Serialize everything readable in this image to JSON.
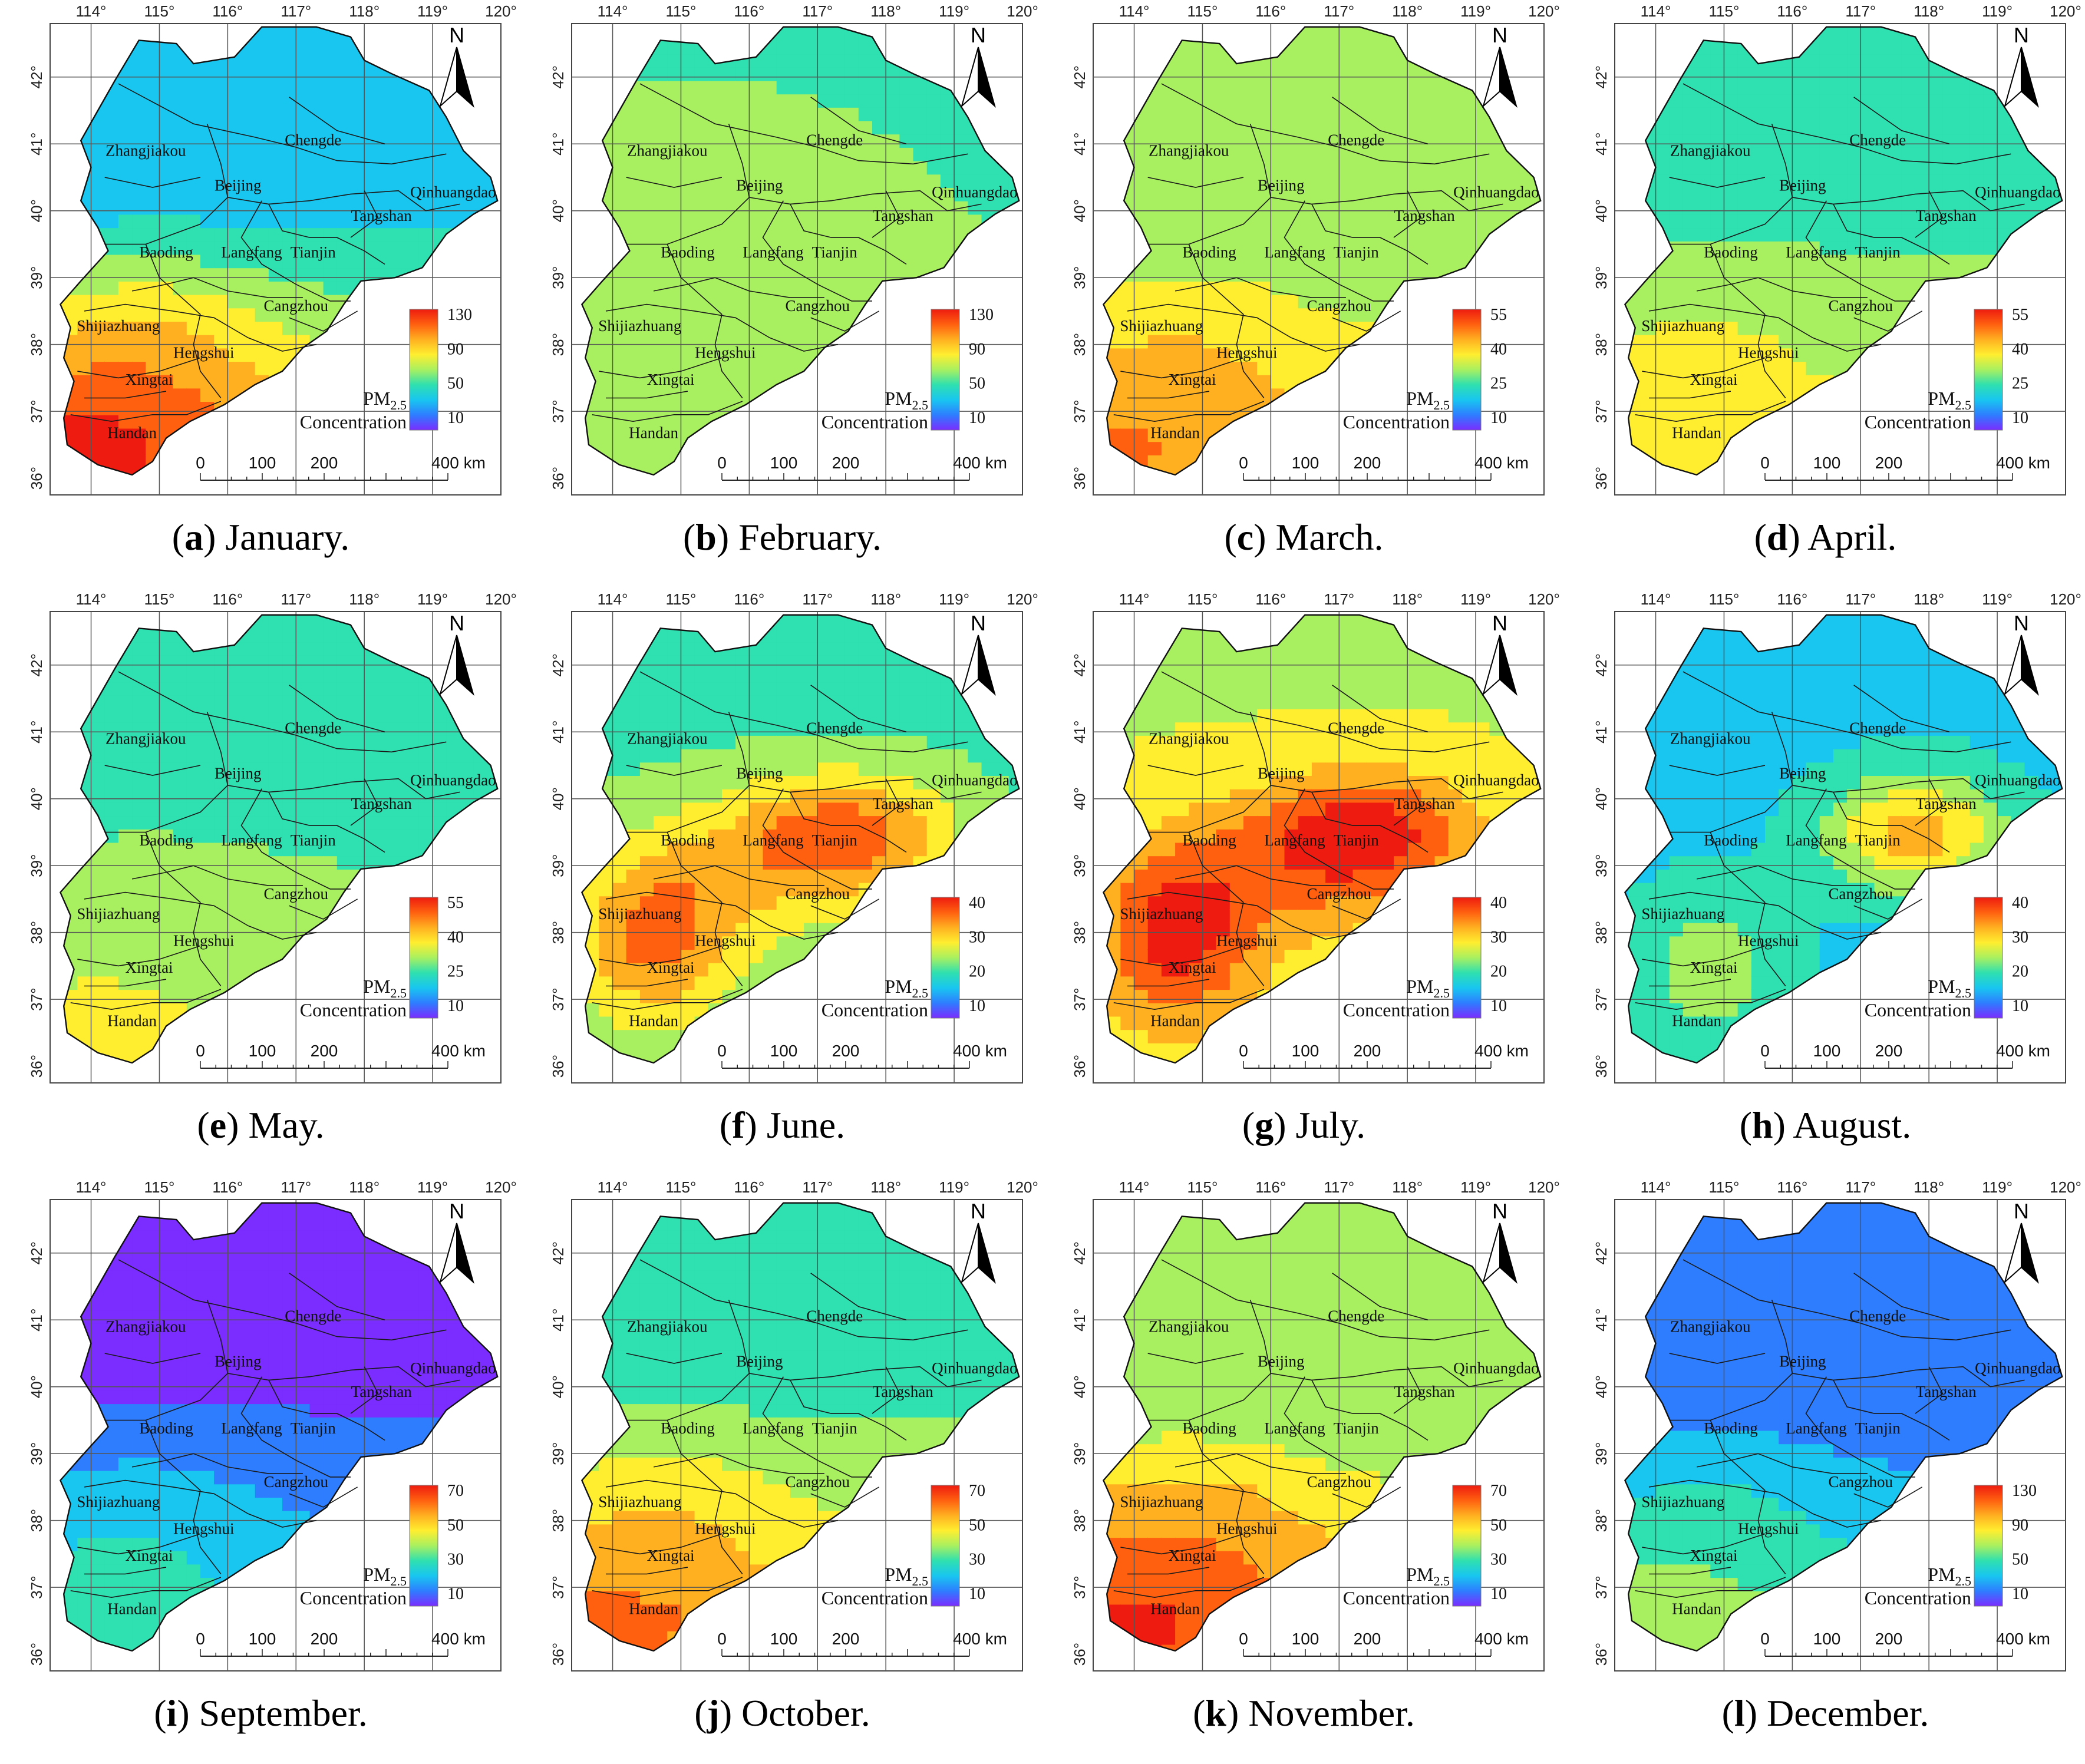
{
  "panels": [
    {
      "letter": "a",
      "month": "January.",
      "ticks": [
        "130",
        "90",
        "50",
        "10"
      ],
      "pattern": "south_hot",
      "hot": 1.0,
      "cool": 0.32
    },
    {
      "letter": "b",
      "month": "February.",
      "ticks": [
        "130",
        "90",
        "50",
        "10"
      ],
      "pattern": "uniform",
      "hot": 0.58,
      "cool": 0.42
    },
    {
      "letter": "c",
      "month": "March.",
      "ticks": [
        "55",
        "40",
        "25",
        "10"
      ],
      "pattern": "south_hot",
      "hot": 0.82,
      "cool": 0.45
    },
    {
      "letter": "d",
      "month": "April.",
      "ticks": [
        "55",
        "40",
        "25",
        "10"
      ],
      "pattern": "south_hot",
      "hot": 0.68,
      "cool": 0.42
    },
    {
      "letter": "e",
      "month": "May.",
      "ticks": [
        "55",
        "40",
        "25",
        "10"
      ],
      "pattern": "south_hot",
      "hot": 0.6,
      "cool": 0.42
    },
    {
      "letter": "f",
      "month": "June.",
      "ticks": [
        "40",
        "30",
        "20",
        "10"
      ],
      "pattern": "center_hot",
      "hot": 0.88,
      "cool": 0.42
    },
    {
      "letter": "g",
      "month": "July.",
      "ticks": [
        "40",
        "30",
        "20",
        "10"
      ],
      "pattern": "center_hot",
      "hot": 1.0,
      "cool": 0.55
    },
    {
      "letter": "h",
      "month": "August.",
      "ticks": [
        "40",
        "30",
        "20",
        "10"
      ],
      "pattern": "east_hot",
      "hot": 0.8,
      "cool": 0.3
    },
    {
      "letter": "i",
      "month": "September.",
      "ticks": [
        "70",
        "50",
        "30",
        "10"
      ],
      "pattern": "south_hot",
      "hot": 0.45,
      "cool": 0.1
    },
    {
      "letter": "j",
      "month": "October.",
      "ticks": [
        "70",
        "50",
        "30",
        "10"
      ],
      "pattern": "south_hot",
      "hot": 0.85,
      "cool": 0.42
    },
    {
      "letter": "k",
      "month": "November.",
      "ticks": [
        "70",
        "50",
        "30",
        "10"
      ],
      "pattern": "south_hot",
      "hot": 0.96,
      "cool": 0.45
    },
    {
      "letter": "l",
      "month": "December.",
      "ticks": [
        "130",
        "90",
        "50",
        "10"
      ],
      "pattern": "south_hot",
      "hot": 0.55,
      "cool": 0.15
    }
  ],
  "lon_labels": [
    "114°",
    "115°",
    "116°",
    "117°",
    "118°",
    "119°",
    "120°"
  ],
  "lat_labels": [
    "42°",
    "41°",
    "40°",
    "39°",
    "38°",
    "37°",
    "36°"
  ],
  "cities": [
    "Chengde",
    "Zhangjiakou",
    "Beijing",
    "Qinhuangdao",
    "Tangshan",
    "Tianjin",
    "Langfang",
    "Baoding",
    "Cangzhou",
    "Shijiazhuang",
    "Hengshui",
    "Xingtai",
    "Handan"
  ],
  "north_label": "N",
  "legend_title": "PM",
  "legend_sub": "2.5",
  "legend_title2": "Concentration",
  "scale_labels": [
    "0",
    "100",
    "200",
    "400 km"
  ],
  "colors": [
    "#7b2cff",
    "#2e7dff",
    "#18c6f0",
    "#2fe0b0",
    "#a8f060",
    "#ffee30",
    "#ffb020",
    "#ff6010",
    "#ee1c10"
  ]
}
